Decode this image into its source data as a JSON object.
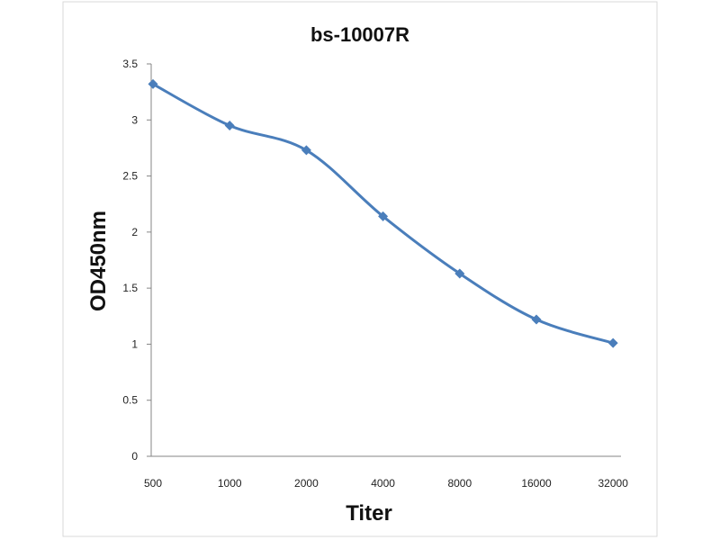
{
  "chart_data": {
    "type": "line",
    "title": "bs-10007R",
    "xlabel": "Titer",
    "ylabel": "OD450nm",
    "categories": [
      "500",
      "1000",
      "2000",
      "4000",
      "8000",
      "16000",
      "32000"
    ],
    "series": [
      {
        "name": "bs-10007R",
        "values": [
          3.32,
          2.95,
          2.73,
          2.14,
          1.63,
          1.22,
          1.01
        ],
        "color": "#4a7ebb"
      }
    ],
    "ylim": [
      0,
      3.5
    ],
    "yticks": [
      "0",
      "0.5",
      "1",
      "1.5",
      "2",
      "2.5",
      "3",
      "3.5"
    ],
    "grid": false,
    "legend": "none"
  }
}
